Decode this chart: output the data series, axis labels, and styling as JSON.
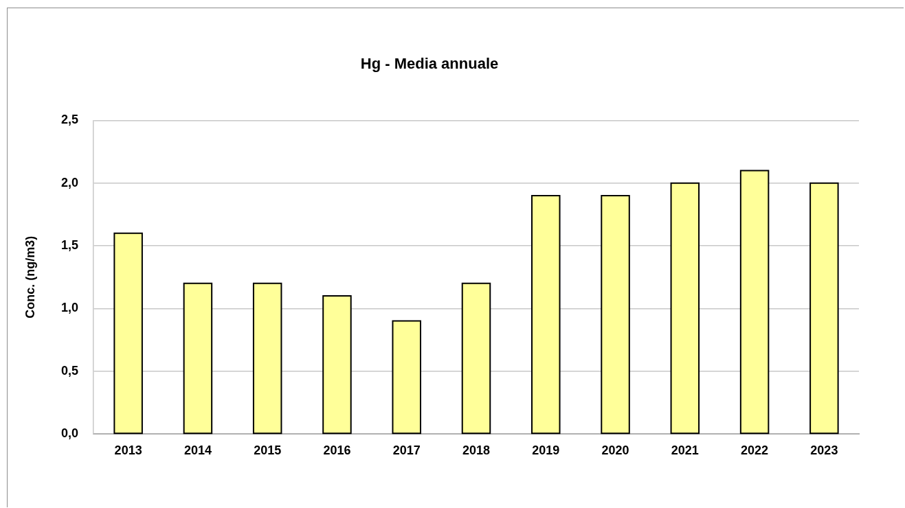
{
  "chart_data": {
    "type": "bar",
    "title": "Hg - Media annuale",
    "ylabel": "Conc. (ng/m3)",
    "categories": [
      "2013",
      "2014",
      "2015",
      "2016",
      "2017",
      "2018",
      "2019",
      "2020",
      "2021",
      "2022",
      "2023"
    ],
    "values": [
      1.6,
      1.2,
      1.2,
      1.1,
      0.9,
      1.2,
      1.9,
      1.9,
      2.0,
      2.1,
      2.0
    ],
    "color": "#ffff99",
    "ylim": [
      0,
      2.5
    ],
    "yticks": [
      {
        "value": 0,
        "label": "0,0"
      },
      {
        "value": 0.5,
        "label": "0,5"
      },
      {
        "value": 1,
        "label": "1,0"
      },
      {
        "value": 1.5,
        "label": "1,5"
      },
      {
        "value": 2,
        "label": "2,0"
      },
      {
        "value": 2.5,
        "label": "2,5"
      }
    ],
    "grid": "y",
    "legend": false
  }
}
